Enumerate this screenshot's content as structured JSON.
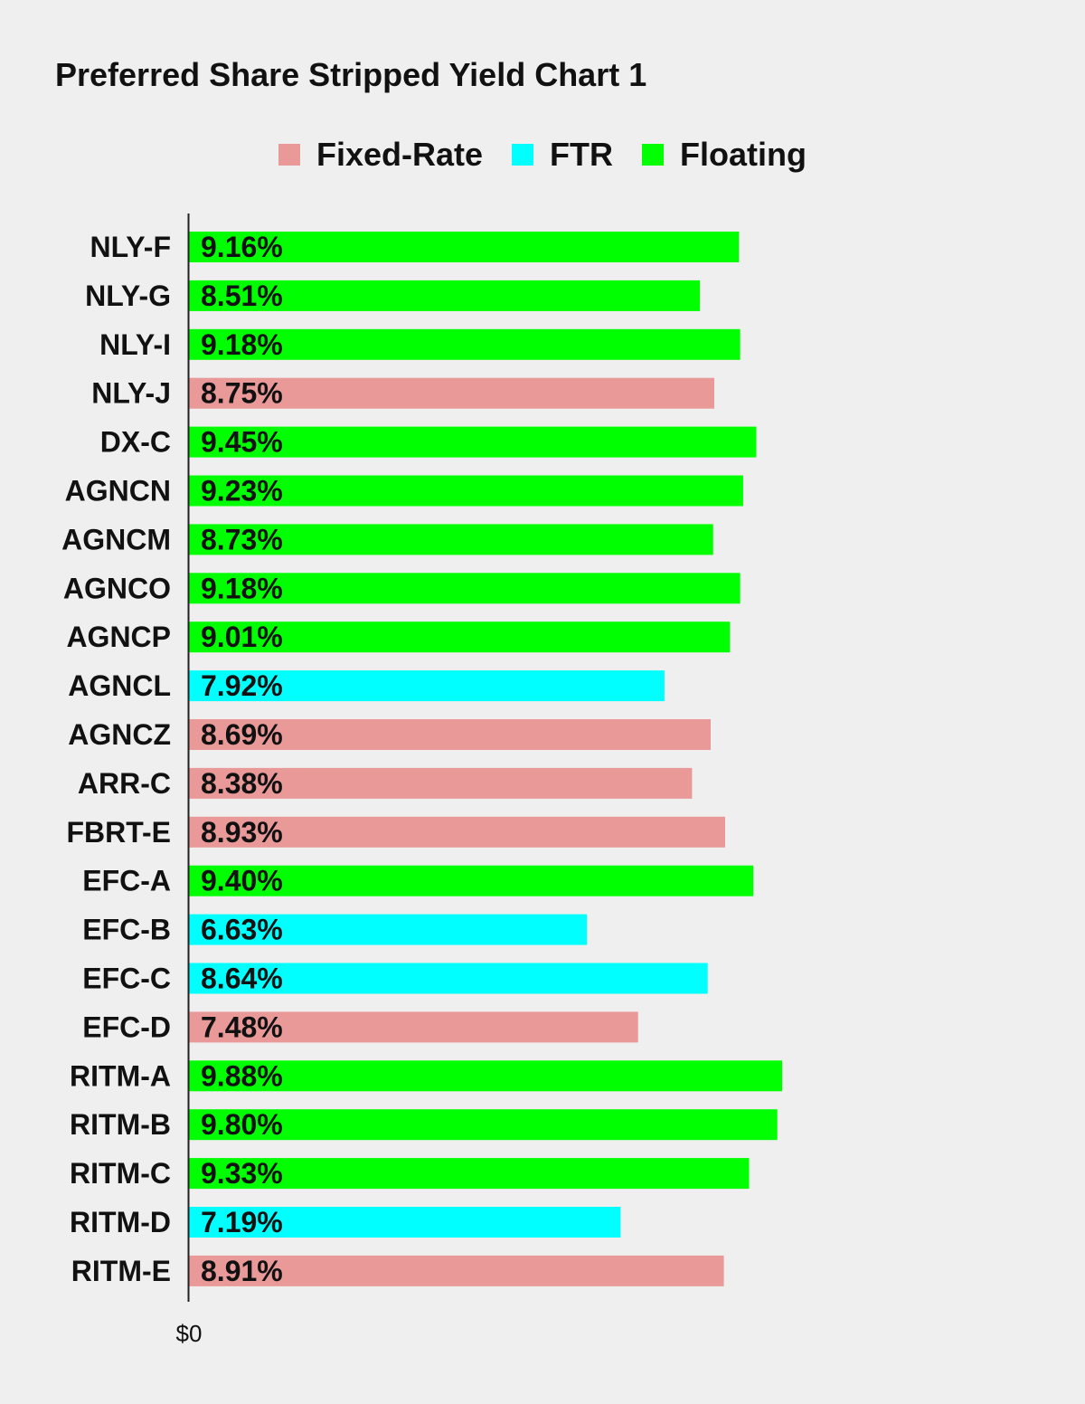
{
  "chart_data": {
    "type": "bar",
    "orientation": "horizontal",
    "title": "Preferred Share Stripped Yield Chart 1",
    "legend_position": "top-center",
    "grid": false,
    "x_tick_labels": [
      "$0"
    ],
    "xlim": [
      0,
      11
    ],
    "series": [
      {
        "name": "Fixed-Rate",
        "color": "#ea9999"
      },
      {
        "name": "FTR",
        "color": "#00ffff"
      },
      {
        "name": "Floating",
        "color": "#00ff00"
      }
    ],
    "categories": [
      "NLY-F",
      "NLY-G",
      "NLY-I",
      "NLY-J",
      "DX-C",
      "AGNCN",
      "AGNCM",
      "AGNCO",
      "AGNCP",
      "AGNCL",
      "AGNCZ",
      "ARR-C",
      "FBRT-E",
      "EFC-A",
      "EFC-B",
      "EFC-C",
      "EFC-D",
      "RITM-A",
      "RITM-B",
      "RITM-C",
      "RITM-D",
      "RITM-E"
    ],
    "values": [
      9.16,
      8.51,
      9.18,
      8.75,
      9.45,
      9.23,
      8.73,
      9.18,
      9.01,
      7.92,
      8.69,
      8.38,
      8.93,
      9.4,
      6.63,
      8.64,
      7.48,
      9.88,
      9.8,
      9.33,
      7.19,
      8.91
    ],
    "value_labels": [
      "9.16%",
      "8.51%",
      "9.18%",
      "8.75%",
      "9.45%",
      "9.23%",
      "8.73%",
      "9.18%",
      "9.01%",
      "7.92%",
      "8.69%",
      "8.38%",
      "8.93%",
      "9.40%",
      "6.63%",
      "8.64%",
      "7.48%",
      "9.88%",
      "9.80%",
      "9.33%",
      "7.19%",
      "8.91%"
    ],
    "bar_series": [
      "Floating",
      "Floating",
      "Floating",
      "Fixed-Rate",
      "Floating",
      "Floating",
      "Floating",
      "Floating",
      "Floating",
      "FTR",
      "Fixed-Rate",
      "Fixed-Rate",
      "Fixed-Rate",
      "Floating",
      "FTR",
      "FTR",
      "Fixed-Rate",
      "Floating",
      "Floating",
      "Floating",
      "FTR",
      "Fixed-Rate"
    ]
  }
}
